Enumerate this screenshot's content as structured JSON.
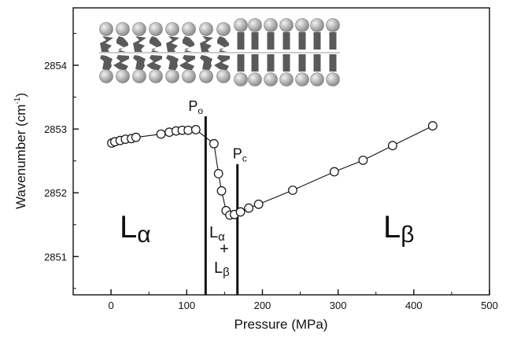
{
  "chart_data": {
    "type": "scatter",
    "xlabel": "Pressure (MPa)",
    "ylabel_main": "Wavenumber (cm",
    "ylabel_sup": "-1",
    "ylabel_close": ")",
    "xlim": [
      -50,
      500
    ],
    "ylim": [
      2850.4,
      2854.9
    ],
    "x_ticks": [
      "0",
      "100",
      "200",
      "300",
      "400",
      "500"
    ],
    "y_ticks": [
      "2851",
      "2852",
      "2853",
      "2854"
    ],
    "x_tick_values": [
      0,
      100,
      200,
      300,
      400,
      500
    ],
    "y_tick_values": [
      2851,
      2852,
      2853,
      2854
    ],
    "grid": false,
    "series": [
      {
        "x": [
          1,
          5,
          12,
          19,
          27,
          33,
          66,
          77,
          86,
          94,
          102,
          112,
          136,
          142,
          146,
          152,
          157,
          163,
          171,
          182,
          195,
          240,
          295,
          333,
          372,
          425
        ],
        "y": [
          2852.78,
          2852.8,
          2852.82,
          2852.84,
          2852.85,
          2852.87,
          2852.92,
          2852.95,
          2852.97,
          2852.98,
          2852.98,
          2852.99,
          2852.77,
          2852.3,
          2852.03,
          2851.72,
          2851.65,
          2851.66,
          2851.7,
          2851.76,
          2851.82,
          2852.04,
          2852.33,
          2852.51,
          2852.74,
          2853.05
        ],
        "marker": "open-circle",
        "line": "solid"
      }
    ],
    "vertical_lines": [
      {
        "label_main": "P",
        "label_sub": "o",
        "x": 125
      },
      {
        "label_main": "P",
        "label_sub": "c",
        "x": 167
      }
    ],
    "annotations": {
      "alpha_phase": {
        "main": "L",
        "sub": "α"
      },
      "beta_phase": {
        "main": "L",
        "sub": "β"
      },
      "mixed_phase": {
        "top_main": "L",
        "top_sub": "α",
        "plus": "+",
        "bottom_main": "L",
        "bottom_sub": "β"
      }
    },
    "inset": "lipid bilayer schematic: disordered chains (left) transitioning to ordered chains (right)"
  },
  "colors": {
    "ink": "#111111",
    "bilayer": "#5a5a5a",
    "head": "#8d8d8d"
  }
}
